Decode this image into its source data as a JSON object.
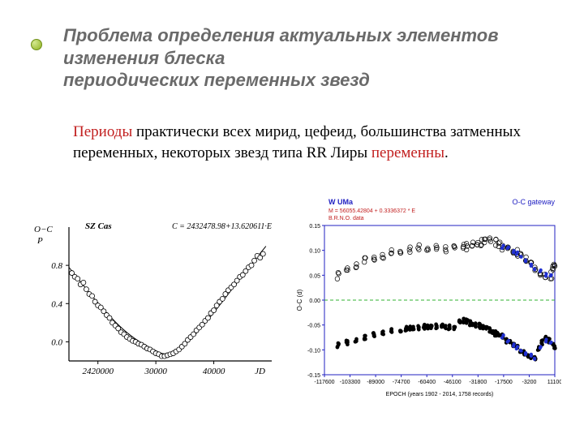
{
  "title": {
    "line1": "Проблема определения актуальных элементов изменения блеска",
    "line3": "периодических переменных звезд",
    "color": "#6a6a6a",
    "fontsize": 22
  },
  "body": {
    "lead_word": "Периоды",
    "lead_color": "#c22020",
    "mid_text": " практически всех мирид, цефеид, большинства затменных переменных, некоторых звезд типа RR Лиры ",
    "tail_word": "переменны",
    "tail_color": "#c22020",
    "mid_color": "#000000",
    "fontsize": 19
  },
  "chart1": {
    "type": "scatter",
    "title_left": "SZ Cas",
    "title_right": "C = 2432478.98+13.620611·E",
    "ylabel_lines": [
      "O−C",
      "P"
    ],
    "y_ticks": [
      0.0,
      0.4,
      0.8
    ],
    "ylim": [
      -0.2,
      1.2
    ],
    "x_ticks": [
      2420000,
      30000,
      40000
    ],
    "x_tick_labels": [
      "2420000",
      "30000",
      "40000"
    ],
    "xlim": [
      2415000,
      50000
    ],
    "xlabel": "JD",
    "axis_color": "#000000",
    "curve_color": "#000000",
    "marker_fill": "#ffffff",
    "marker_stroke": "#000000",
    "marker_size": 3.0,
    "font_family": "Georgia, serif",
    "font_italic": true,
    "label_fontsize": 11,
    "points": [
      [
        2415500,
        0.72
      ],
      [
        2416000,
        0.68
      ],
      [
        2416500,
        0.66
      ],
      [
        2417000,
        0.6
      ],
      [
        2417500,
        0.62
      ],
      [
        2418000,
        0.55
      ],
      [
        2418500,
        0.5
      ],
      [
        2419000,
        0.48
      ],
      [
        2419500,
        0.42
      ],
      [
        2420000,
        0.38
      ],
      [
        2420500,
        0.36
      ],
      [
        2421000,
        0.32
      ],
      [
        2421500,
        0.28
      ],
      [
        2422000,
        0.25
      ],
      [
        2422500,
        0.2
      ],
      [
        2423000,
        0.17
      ],
      [
        2423500,
        0.14
      ],
      [
        2424000,
        0.1
      ],
      [
        2424500,
        0.08
      ],
      [
        2425000,
        0.05
      ],
      [
        2425500,
        0.03
      ],
      [
        2426000,
        0.01
      ],
      [
        2426500,
        0.0
      ],
      [
        2427000,
        -0.02
      ],
      [
        2427500,
        -0.03
      ],
      [
        2428000,
        -0.05
      ],
      [
        2428500,
        -0.07
      ],
      [
        2429000,
        -0.08
      ],
      [
        2429500,
        -0.1
      ],
      [
        2430000,
        -0.12
      ],
      [
        2430500,
        -0.13
      ],
      [
        2431000,
        -0.15
      ],
      [
        2431500,
        -0.15
      ],
      [
        2432000,
        -0.14
      ],
      [
        2432500,
        -0.13
      ],
      [
        2433000,
        -0.12
      ],
      [
        2433500,
        -0.1
      ],
      [
        2434000,
        -0.08
      ],
      [
        2434500,
        -0.05
      ],
      [
        2435000,
        -0.02
      ],
      [
        2435500,
        0.02
      ],
      [
        2436000,
        0.05
      ],
      [
        2436500,
        0.08
      ],
      [
        2437000,
        0.12
      ],
      [
        2437500,
        0.15
      ],
      [
        2438000,
        0.18
      ],
      [
        2438500,
        0.22
      ],
      [
        2439000,
        0.25
      ],
      [
        2439500,
        0.3
      ],
      [
        2440000,
        0.33
      ],
      [
        2440500,
        0.38
      ],
      [
        2441000,
        0.42
      ],
      [
        2441500,
        0.45
      ],
      [
        2442000,
        0.5
      ],
      [
        2442500,
        0.54
      ],
      [
        2443000,
        0.57
      ],
      [
        2443500,
        0.6
      ],
      [
        2444000,
        0.64
      ],
      [
        2444500,
        0.68
      ],
      [
        2445000,
        0.7
      ],
      [
        2445500,
        0.74
      ],
      [
        2446000,
        0.78
      ],
      [
        2446500,
        0.8
      ],
      [
        2447000,
        0.85
      ],
      [
        2447500,
        0.9
      ],
      [
        2448000,
        0.88
      ],
      [
        2448500,
        0.92
      ]
    ],
    "curve_anchors": [
      [
        2415000,
        0.78
      ],
      [
        2420000,
        0.4
      ],
      [
        2425000,
        0.08
      ],
      [
        2430000,
        -0.1
      ],
      [
        2432000,
        -0.14
      ],
      [
        2435000,
        -0.05
      ],
      [
        2440000,
        0.3
      ],
      [
        2445000,
        0.7
      ],
      [
        2449000,
        1.0
      ]
    ]
  },
  "chart2": {
    "type": "scatter",
    "title_left": "W UMa",
    "title_right": "O-C gateway",
    "subtitle1": "M = 56055.42804 + 0.3336372 * E",
    "subtitle2": "B.R.N.O. data",
    "subtitle_color": "#c22020",
    "title_color": "#2020c2",
    "ylabel": "O-C (d)",
    "xlabel": "EPOCH (years 1902 - 2014, 1758 records)",
    "ylim": [
      -0.15,
      0.15
    ],
    "y_ticks": [
      -0.15,
      -0.1,
      -0.05,
      0.0,
      0.05,
      0.1,
      0.15
    ],
    "xlim": [
      -117600,
      11100
    ],
    "x_ticks": [
      -117600,
      -103300,
      -89000,
      -74700,
      -60400,
      -46100,
      -31800,
      -17500,
      -3200,
      11100
    ],
    "zero_line_color": "#30b030",
    "zero_line_dash": "4 3",
    "border_color": "#2020c2",
    "tick_font": "Arial, sans-serif",
    "tick_fontsize": 7,
    "series_a": {
      "marker_fill": "none",
      "marker_stroke": "#000000",
      "marker_size": 2.8,
      "points": [
        [
          -110000,
          0.05
        ],
        [
          -105000,
          0.06
        ],
        [
          -100000,
          0.07
        ],
        [
          -95000,
          0.08
        ],
        [
          -90000,
          0.085
        ],
        [
          -85000,
          0.09
        ],
        [
          -80000,
          0.095
        ],
        [
          -75000,
          0.1
        ],
        [
          -70000,
          0.1
        ],
        [
          -65000,
          0.105
        ],
        [
          -60000,
          0.105
        ],
        [
          -55000,
          0.105
        ],
        [
          -50000,
          0.103
        ],
        [
          -45000,
          0.11
        ],
        [
          -40000,
          0.11
        ],
        [
          -38000,
          0.107
        ],
        [
          -35000,
          0.11
        ],
        [
          -32000,
          0.112
        ],
        [
          -30000,
          0.115
        ],
        [
          -28000,
          0.118
        ],
        [
          -25000,
          0.118
        ],
        [
          -22000,
          0.115
        ],
        [
          -20000,
          0.112
        ],
        [
          -18000,
          0.108
        ],
        [
          -15000,
          0.105
        ],
        [
          -12000,
          0.1
        ],
        [
          -10000,
          0.095
        ],
        [
          -8000,
          0.09
        ],
        [
          -5000,
          0.08
        ],
        [
          -2000,
          0.07
        ],
        [
          0,
          0.065
        ],
        [
          3000,
          0.056
        ],
        [
          6000,
          0.048
        ],
        [
          9000,
          0.05
        ],
        [
          10000,
          0.065
        ],
        [
          11000,
          0.07
        ]
      ]
    },
    "series_b": {
      "marker_fill": "#000000",
      "marker_stroke": "#000000",
      "marker_size": 2.0,
      "points": [
        [
          -110000,
          -0.09
        ],
        [
          -105000,
          -0.085
        ],
        [
          -100000,
          -0.08
        ],
        [
          -95000,
          -0.075
        ],
        [
          -90000,
          -0.07
        ],
        [
          -85000,
          -0.065
        ],
        [
          -80000,
          -0.062
        ],
        [
          -75000,
          -0.06
        ],
        [
          -72000,
          -0.058
        ],
        [
          -70000,
          -0.057
        ],
        [
          -68000,
          -0.056
        ],
        [
          -65000,
          -0.055
        ],
        [
          -62000,
          -0.054
        ],
        [
          -60000,
          -0.054
        ],
        [
          -58000,
          -0.053
        ],
        [
          -55000,
          -0.053
        ],
        [
          -52000,
          -0.053
        ],
        [
          -50000,
          -0.054
        ],
        [
          -48000,
          -0.055
        ],
        [
          -45000,
          -0.057
        ],
        [
          -42000,
          -0.045
        ],
        [
          -40000,
          -0.042
        ],
        [
          -38000,
          -0.043
        ],
        [
          -36000,
          -0.046
        ],
        [
          -35000,
          -0.048
        ],
        [
          -33000,
          -0.05
        ],
        [
          -31000,
          -0.052
        ],
        [
          -30000,
          -0.054
        ],
        [
          -29000,
          -0.056
        ],
        [
          -27000,
          -0.058
        ],
        [
          -25000,
          -0.06
        ],
        [
          -24000,
          -0.062
        ],
        [
          -23000,
          -0.065
        ],
        [
          -22000,
          -0.067
        ],
        [
          -21000,
          -0.068
        ],
        [
          -20000,
          -0.07
        ],
        [
          -18000,
          -0.073
        ],
        [
          -16000,
          -0.082
        ],
        [
          -14000,
          -0.086
        ],
        [
          -12000,
          -0.09
        ],
        [
          -10000,
          -0.095
        ],
        [
          -8000,
          -0.1
        ],
        [
          -6000,
          -0.105
        ],
        [
          -4000,
          -0.11
        ],
        [
          -2000,
          -0.113
        ],
        [
          0,
          -0.115
        ],
        [
          2000,
          -0.098
        ],
        [
          4000,
          -0.085
        ],
        [
          6000,
          -0.078
        ],
        [
          8000,
          -0.082
        ],
        [
          10000,
          -0.09
        ],
        [
          11000,
          -0.095
        ]
      ]
    },
    "series_blue": {
      "marker_fill": "#2030d0",
      "marker_stroke": "#2030d0",
      "marker_size": 1.8,
      "points_top": [
        [
          -18000,
          0.108
        ],
        [
          -15000,
          0.104
        ],
        [
          -12000,
          0.098
        ],
        [
          -10000,
          0.094
        ],
        [
          -8000,
          0.089
        ],
        [
          -5000,
          0.08
        ],
        [
          -2000,
          0.069
        ],
        [
          0,
          0.064
        ],
        [
          3000,
          0.057
        ],
        [
          6000,
          0.05
        ],
        [
          9000,
          0.051
        ]
      ],
      "points_bottom": [
        [
          -18000,
          -0.072
        ],
        [
          -15000,
          -0.084
        ],
        [
          -12000,
          -0.09
        ],
        [
          -10000,
          -0.096
        ],
        [
          -8000,
          -0.1
        ],
        [
          -5000,
          -0.107
        ],
        [
          -2000,
          -0.112
        ],
        [
          0,
          -0.116
        ],
        [
          3000,
          -0.097
        ],
        [
          6000,
          -0.082
        ],
        [
          9000,
          -0.084
        ]
      ]
    },
    "background_color": "#ffffff"
  }
}
